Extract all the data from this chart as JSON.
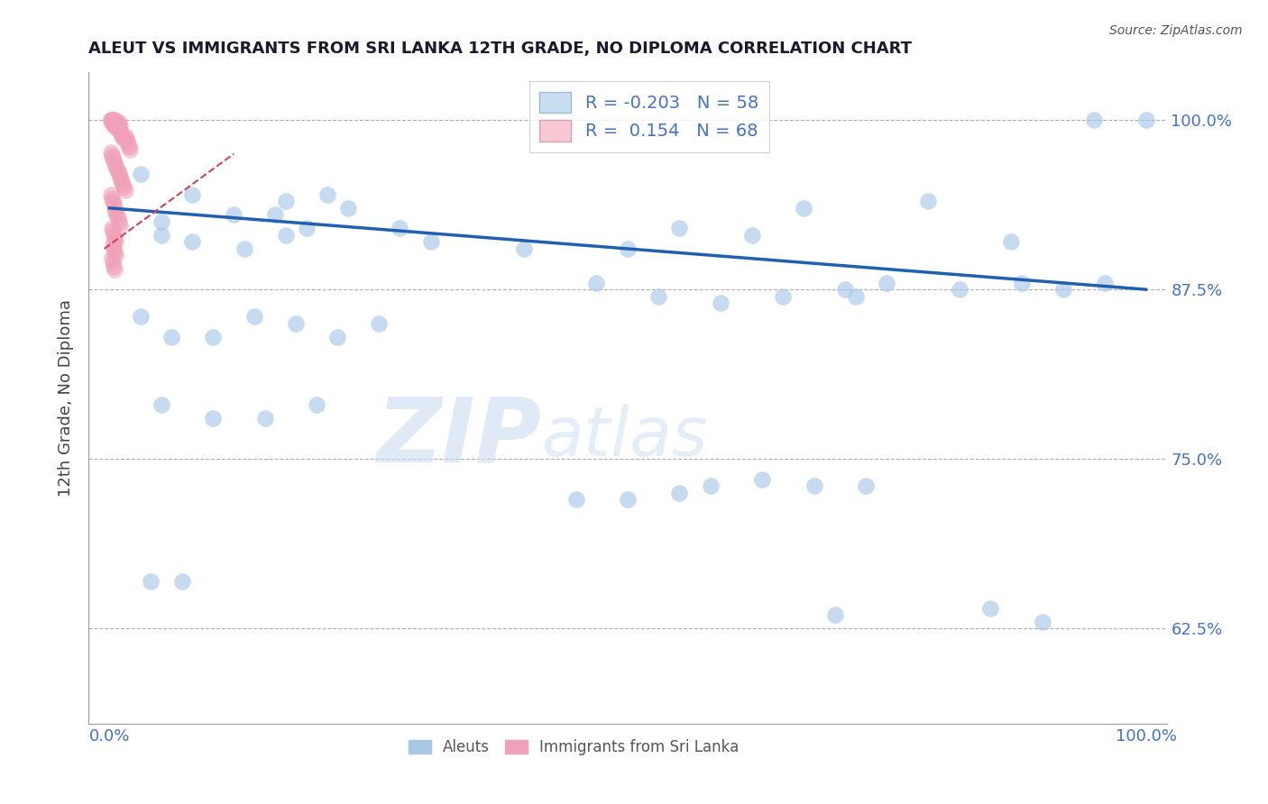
{
  "title": "ALEUT VS IMMIGRANTS FROM SRI LANKA 12TH GRADE, NO DIPLOMA CORRELATION CHART",
  "source": "Source: ZipAtlas.com",
  "ylabel": "12th Grade, No Diploma",
  "r_aleut": -0.203,
  "n_aleut": 58,
  "r_srilanka": 0.154,
  "n_srilanka": 68,
  "blue_color": "#a8c8e8",
  "pink_color": "#f0a0b8",
  "trend_blue_color": "#2060b0",
  "trend_pink_color": "#d04060",
  "legend_blue_fill": "#c8dff0",
  "legend_pink_fill": "#f8c8d4",
  "text_color": "#4472c4",
  "title_color": "#1a1a2e",
  "source_color": "#555555",
  "watermark_zip": "ZIP",
  "watermark_atlas": "atlas",
  "background_color": "#ffffff",
  "ylim": [
    0.555,
    1.035
  ],
  "xlim": [
    -0.02,
    1.02
  ],
  "yticks": [
    0.625,
    0.75,
    0.875,
    1.0
  ],
  "ytick_labels": [
    "62.5%",
    "75.0%",
    "87.5%",
    "100.0%"
  ],
  "xticks": [
    0.0,
    0.25,
    0.5,
    0.75,
    1.0
  ],
  "xtick_labels": [
    "0.0%",
    "",
    "",
    "",
    "100.0%"
  ],
  "blue_trend_x0": 0.0,
  "blue_trend_y0": 0.935,
  "blue_trend_x1": 1.0,
  "blue_trend_y1": 0.875,
  "pink_trend_x0": -0.005,
  "pink_trend_y0": 0.905,
  "pink_trend_x1": 0.12,
  "pink_trend_y1": 0.975,
  "aleut_x": [
    0.03,
    0.08,
    0.17,
    0.21,
    0.23,
    0.05,
    0.12,
    0.16,
    0.19,
    0.28,
    0.05,
    0.08,
    0.13,
    0.17,
    0.31,
    0.4,
    0.5,
    0.55,
    0.62,
    0.71,
    0.75,
    0.82,
    0.88,
    0.92,
    0.96,
    1.0,
    0.67,
    0.79,
    0.87,
    0.95,
    0.03,
    0.06,
    0.1,
    0.14,
    0.18,
    0.22,
    0.26,
    0.47,
    0.53,
    0.59,
    0.65,
    0.72,
    0.05,
    0.1,
    0.15,
    0.2,
    0.58,
    0.63,
    0.68,
    0.73,
    0.04,
    0.07,
    0.45,
    0.5,
    0.55,
    0.7,
    0.85,
    0.9
  ],
  "aleut_y": [
    0.96,
    0.945,
    0.94,
    0.945,
    0.935,
    0.925,
    0.93,
    0.93,
    0.92,
    0.92,
    0.915,
    0.91,
    0.905,
    0.915,
    0.91,
    0.905,
    0.905,
    0.92,
    0.915,
    0.875,
    0.88,
    0.875,
    0.88,
    0.875,
    0.88,
    1.0,
    0.935,
    0.94,
    0.91,
    1.0,
    0.855,
    0.84,
    0.84,
    0.855,
    0.85,
    0.84,
    0.85,
    0.88,
    0.87,
    0.865,
    0.87,
    0.87,
    0.79,
    0.78,
    0.78,
    0.79,
    0.73,
    0.735,
    0.73,
    0.73,
    0.66,
    0.66,
    0.72,
    0.72,
    0.725,
    0.635,
    0.64,
    0.63
  ],
  "srilanka_x": [
    0.001,
    0.001,
    0.002,
    0.002,
    0.003,
    0.003,
    0.004,
    0.004,
    0.005,
    0.005,
    0.006,
    0.006,
    0.007,
    0.007,
    0.008,
    0.008,
    0.009,
    0.009,
    0.01,
    0.01,
    0.011,
    0.012,
    0.013,
    0.014,
    0.015,
    0.016,
    0.017,
    0.018,
    0.019,
    0.02,
    0.001,
    0.002,
    0.003,
    0.004,
    0.005,
    0.006,
    0.007,
    0.008,
    0.009,
    0.01,
    0.011,
    0.012,
    0.013,
    0.014,
    0.015,
    0.001,
    0.002,
    0.003,
    0.004,
    0.005,
    0.006,
    0.007,
    0.008,
    0.009,
    0.01,
    0.002,
    0.003,
    0.004,
    0.005,
    0.006,
    0.003,
    0.004,
    0.005,
    0.006,
    0.002,
    0.003,
    0.004,
    0.005
  ],
  "srilanka_y": [
    1.0,
    1.0,
    1.0,
    0.998,
    1.0,
    0.998,
    1.0,
    0.996,
    0.998,
    0.996,
    1.0,
    0.998,
    0.996,
    0.994,
    0.996,
    0.994,
    0.998,
    0.994,
    0.996,
    0.992,
    0.99,
    0.988,
    0.988,
    0.986,
    0.988,
    0.986,
    0.984,
    0.982,
    0.98,
    0.978,
    0.976,
    0.974,
    0.972,
    0.97,
    0.968,
    0.966,
    0.964,
    0.962,
    0.96,
    0.958,
    0.956,
    0.954,
    0.952,
    0.95,
    0.948,
    0.945,
    0.942,
    0.94,
    0.938,
    0.935,
    0.932,
    0.93,
    0.928,
    0.925,
    0.922,
    0.92,
    0.918,
    0.915,
    0.912,
    0.91,
    0.908,
    0.905,
    0.902,
    0.9,
    0.898,
    0.895,
    0.892,
    0.89
  ]
}
